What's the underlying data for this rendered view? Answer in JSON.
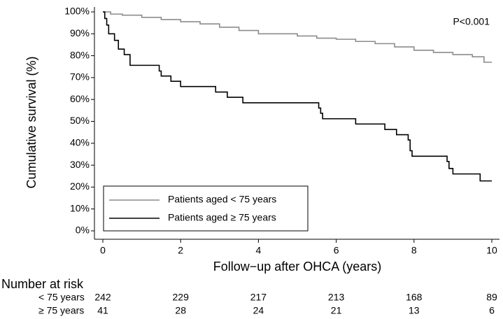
{
  "chart_data": {
    "type": "line",
    "step": "post",
    "annotation": "P<0.001",
    "xlabel": "Follow−up after OHCA (years)",
    "ylabel": "Cumulative survival (%)",
    "xlim": [
      0,
      10
    ],
    "ylim": [
      0,
      100
    ],
    "xticks": [
      0,
      2,
      4,
      6,
      8,
      10
    ],
    "yticks": [
      {
        "value": 0,
        "label": "0%"
      },
      {
        "value": 10,
        "label": "10%"
      },
      {
        "value": 20,
        "label": "20%"
      },
      {
        "value": 30,
        "label": "30%"
      },
      {
        "value": 40,
        "label": "40%"
      },
      {
        "value": 50,
        "label": "50%"
      },
      {
        "value": 60,
        "label": "60%"
      },
      {
        "value": 70,
        "label": "70%"
      },
      {
        "value": 80,
        "label": "80%"
      },
      {
        "value": 90,
        "label": "90%"
      },
      {
        "value": 100,
        "label": "100%"
      }
    ],
    "legend": "lower-left",
    "series": [
      {
        "name": "Patients aged < 75 years",
        "color": "#8c8c8c",
        "x": [
          0,
          0.2,
          0.5,
          1,
          1.5,
          2,
          2.5,
          3,
          3.5,
          4,
          5,
          5.5,
          6,
          6.5,
          7,
          7.5,
          8,
          8.5,
          9,
          9.5,
          9.8,
          10
        ],
        "values": [
          100,
          99,
          98.5,
          97.5,
          96.5,
          95.5,
          94.5,
          93,
          91.5,
          90,
          89,
          88,
          87.5,
          86.5,
          85.5,
          84,
          82.5,
          81.5,
          80.5,
          79.5,
          77,
          77
        ]
      },
      {
        "name": "Patients aged ≥ 75 years",
        "color": "#000000",
        "x": [
          0,
          0.05,
          0.1,
          0.15,
          0.3,
          0.4,
          0.55,
          0.7,
          1.45,
          1.5,
          1.75,
          2,
          2.9,
          3.2,
          3.6,
          5.55,
          5.6,
          5.65,
          6.5,
          7.25,
          7.55,
          7.85,
          7.9,
          7.95,
          8.85,
          8.9,
          9.0,
          9.7,
          10
        ],
        "values": [
          100,
          97,
          94,
          90,
          87,
          83,
          80.5,
          75.6,
          73,
          70.7,
          68.3,
          65.9,
          63.4,
          61,
          58.5,
          56.1,
          53.7,
          51.2,
          48.8,
          46.3,
          43.9,
          41.5,
          36.6,
          34.1,
          31.7,
          28.5,
          26,
          22.8,
          22.8
        ]
      }
    ],
    "risk_table": {
      "title": "Number at risk",
      "rows": [
        {
          "label": "< 75 years",
          "values": [
            242,
            229,
            217,
            213,
            168,
            89
          ]
        },
        {
          "label": "≥ 75 years",
          "values": [
            41,
            28,
            24,
            21,
            13,
            6
          ]
        }
      ]
    }
  }
}
